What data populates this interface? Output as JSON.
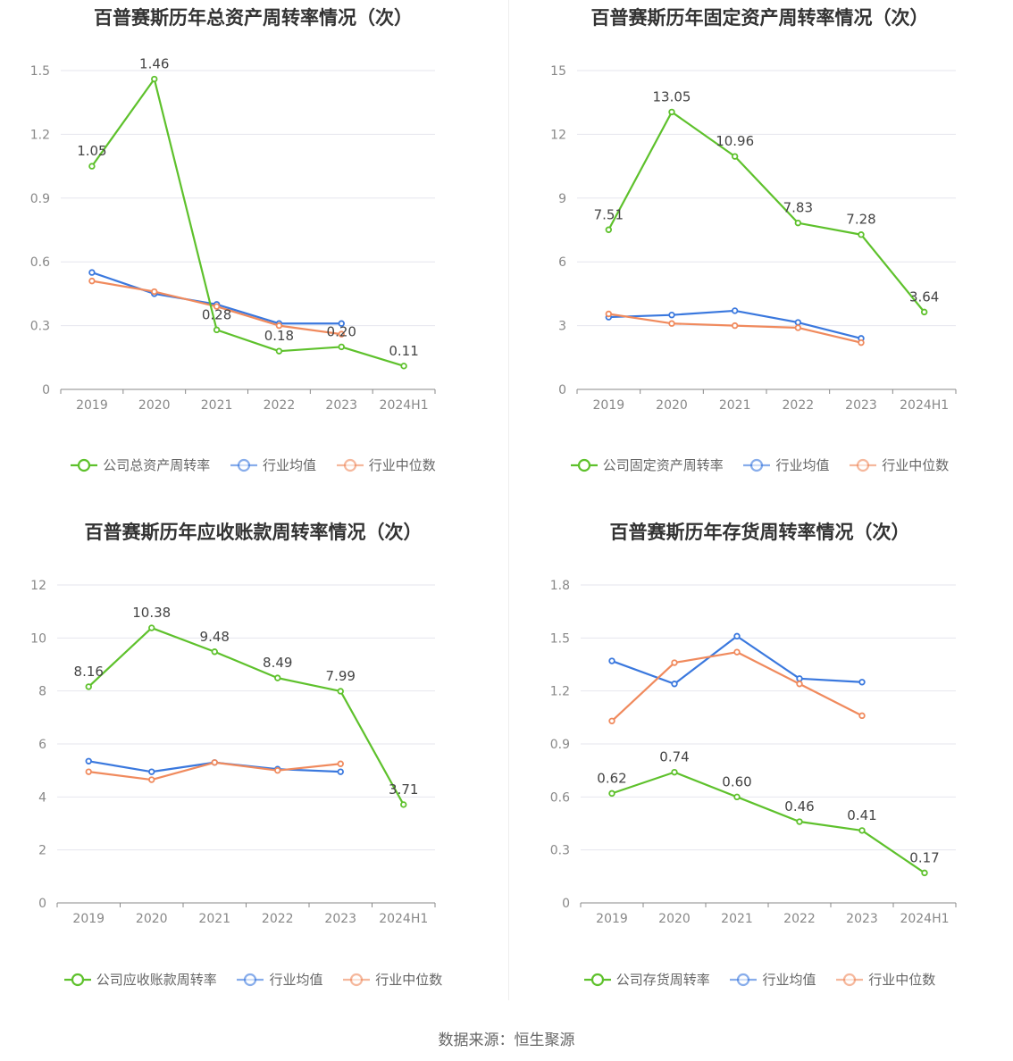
{
  "source": "数据来源：恒生聚源",
  "colors": {
    "company": "#5ec12c",
    "average": "#3a78de",
    "median": "#f08a5d",
    "grid": "#e6e6ee",
    "axis": "#888888"
  },
  "chart_data": [
    {
      "type": "line",
      "title": "百普赛斯历年总资产周转率情况（次）",
      "categories": [
        "2019",
        "2020",
        "2021",
        "2022",
        "2023",
        "2024H1"
      ],
      "ylim": [
        0,
        1.5
      ],
      "yticks": [
        0,
        0.3,
        0.6,
        0.9,
        1.2,
        1.5
      ],
      "yticklabels": [
        "0",
        "0.3",
        "0.6",
        "0.9",
        "1.2",
        "1.5"
      ],
      "series": [
        {
          "name": "公司总资产周转率",
          "key": "company",
          "values": [
            1.05,
            1.46,
            0.28,
            0.18,
            0.2,
            0.11
          ],
          "labels": [
            "1.05",
            "1.46",
            "0.28",
            "0.18",
            "0.20",
            "0.11"
          ]
        },
        {
          "name": "行业均值",
          "key": "average",
          "values": [
            0.55,
            0.45,
            0.4,
            0.31,
            0.31,
            null
          ]
        },
        {
          "name": "行业中位数",
          "key": "median",
          "values": [
            0.51,
            0.46,
            0.39,
            0.3,
            0.26,
            null
          ]
        }
      ]
    },
    {
      "type": "line",
      "title": "百普赛斯历年固定资产周转率情况（次）",
      "categories": [
        "2019",
        "2020",
        "2021",
        "2022",
        "2023",
        "2024H1"
      ],
      "ylim": [
        0,
        15
      ],
      "yticks": [
        0,
        3,
        6,
        9,
        12,
        15
      ],
      "yticklabels": [
        "0",
        "3",
        "6",
        "9",
        "12",
        "15"
      ],
      "series": [
        {
          "name": "公司固定资产周转率",
          "key": "company",
          "values": [
            7.51,
            13.05,
            10.96,
            7.83,
            7.28,
            3.64
          ],
          "labels": [
            "7.51",
            "13.05",
            "10.96",
            "7.83",
            "7.28",
            "3.64"
          ]
        },
        {
          "name": "行业均值",
          "key": "average",
          "values": [
            3.4,
            3.5,
            3.7,
            3.15,
            2.4,
            null
          ]
        },
        {
          "name": "行业中位数",
          "key": "median",
          "values": [
            3.55,
            3.1,
            3.0,
            2.9,
            2.2,
            null
          ]
        }
      ]
    },
    {
      "type": "line",
      "title": "百普赛斯历年应收账款周转率情况（次）",
      "categories": [
        "2019",
        "2020",
        "2021",
        "2022",
        "2023",
        "2024H1"
      ],
      "ylim": [
        0,
        12
      ],
      "yticks": [
        0,
        2,
        4,
        6,
        8,
        10,
        12
      ],
      "yticklabels": [
        "0",
        "2",
        "4",
        "6",
        "8",
        "10",
        "12"
      ],
      "series": [
        {
          "name": "公司应收账款周转率",
          "key": "company",
          "values": [
            8.16,
            10.38,
            9.48,
            8.49,
            7.99,
            3.71
          ],
          "labels": [
            "8.16",
            "10.38",
            "9.48",
            "8.49",
            "7.99",
            "3.71"
          ]
        },
        {
          "name": "行业均值",
          "key": "average",
          "values": [
            5.35,
            4.95,
            5.3,
            5.05,
            4.95,
            null
          ]
        },
        {
          "name": "行业中位数",
          "key": "median",
          "values": [
            4.95,
            4.65,
            5.3,
            5.0,
            5.25,
            null
          ]
        }
      ]
    },
    {
      "type": "line",
      "title": "百普赛斯历年存货周转率情况（次）",
      "categories": [
        "2019",
        "2020",
        "2021",
        "2022",
        "2023",
        "2024H1"
      ],
      "ylim": [
        0,
        1.8
      ],
      "yticks": [
        0,
        0.3,
        0.6,
        0.9,
        1.2,
        1.5,
        1.8
      ],
      "yticklabels": [
        "0",
        "0.3",
        "0.6",
        "0.9",
        "1.2",
        "1.5",
        "1.8"
      ],
      "series": [
        {
          "name": "公司存货周转率",
          "key": "company",
          "values": [
            0.62,
            0.74,
            0.6,
            0.46,
            0.41,
            0.17
          ],
          "labels": [
            "0.62",
            "0.74",
            "0.60",
            "0.46",
            "0.41",
            "0.17"
          ]
        },
        {
          "name": "行业均值",
          "key": "average",
          "values": [
            1.37,
            1.24,
            1.51,
            1.27,
            1.25,
            null
          ]
        },
        {
          "name": "行业中位数",
          "key": "median",
          "values": [
            1.03,
            1.36,
            1.42,
            1.24,
            1.06,
            null
          ]
        }
      ]
    }
  ]
}
